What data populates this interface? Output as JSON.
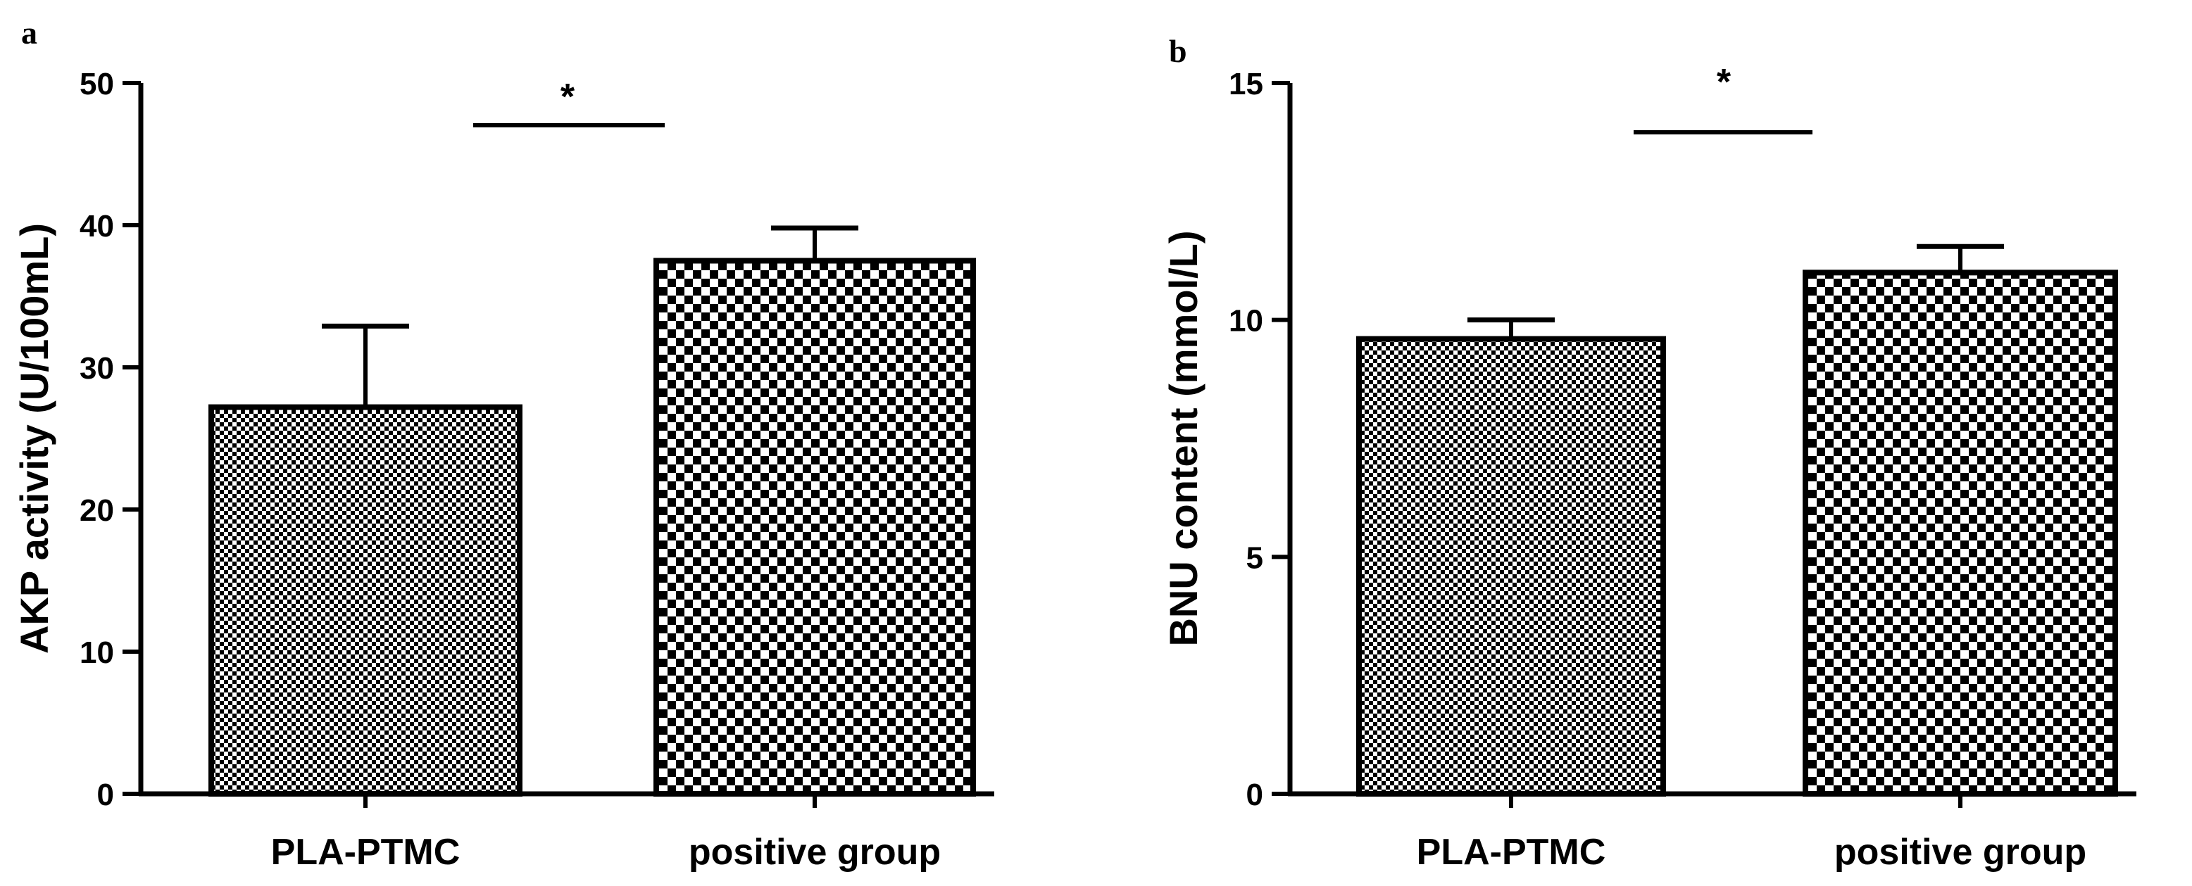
{
  "chart_data": [
    {
      "panel": "a",
      "type": "bar",
      "categories": [
        "PLA-PTMC",
        "positive group"
      ],
      "values": [
        27.2,
        37.5
      ],
      "errors": [
        5.7,
        2.3
      ],
      "patterns": [
        "fine-check",
        "coarse-check"
      ],
      "ylabel": "AKP activity (U/100mL)",
      "ylim": [
        0,
        50
      ],
      "yticks": [
        0,
        10,
        20,
        30,
        40,
        50
      ],
      "significance": "*"
    },
    {
      "panel": "b",
      "type": "bar",
      "categories": [
        "PLA-PTMC",
        "positive group"
      ],
      "values": [
        9.6,
        11.0
      ],
      "errors": [
        0.4,
        0.55
      ],
      "patterns": [
        "fine-check",
        "coarse-check"
      ],
      "ylabel": "BNU content (mmol/L)",
      "ylim": [
        0,
        15
      ],
      "yticks": [
        0,
        5,
        10,
        15
      ],
      "significance": "*"
    }
  ],
  "colors": {
    "ink": "#000000",
    "background": "#ffffff"
  }
}
